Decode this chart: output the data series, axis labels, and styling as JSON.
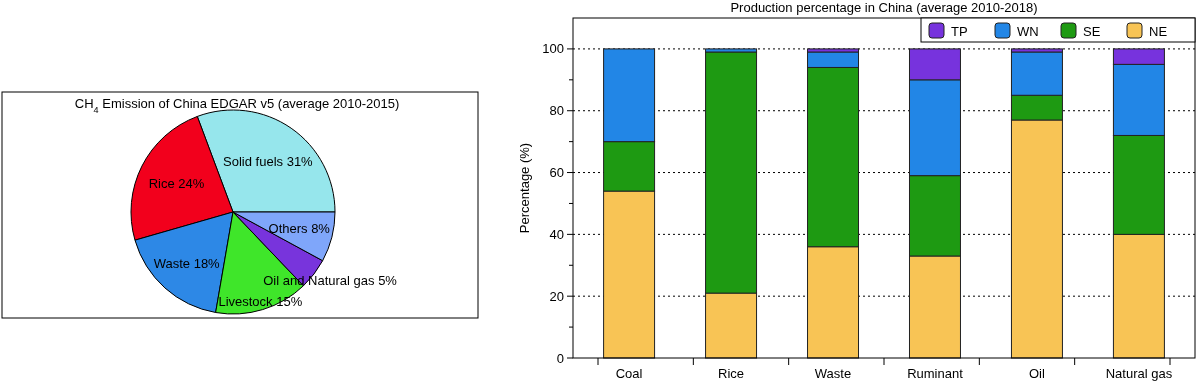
{
  "chart_data": [
    {
      "type": "pie",
      "title": "CH$_{4}$ Emission of China  EDGAR v5 (average 2010-2015)",
      "categories": [
        "Solid fuels",
        "Rice",
        "Waste",
        "Livestock",
        "Oil and Natural gas",
        "Others"
      ],
      "values": [
        31,
        24,
        18,
        15,
        5,
        8
      ],
      "value_labels": [
        "31%",
        "24%",
        "18%",
        "15%",
        "5%",
        "8%"
      ],
      "colors": [
        "#96e6ec",
        "#f2001c",
        "#2d88e6",
        "#3fe62a",
        "#7834dc",
        "#7fa6fa"
      ]
    },
    {
      "type": "bar",
      "title": "Production percentage in China (average 2010-2018)",
      "ylabel": "Percentage (%)",
      "categories": [
        "Coal",
        "Rice",
        "Waste",
        "Ruminant",
        "Oil",
        "Natural gas"
      ],
      "stacked": true,
      "series": [
        {
          "name": "NE",
          "color": "#f8c455",
          "values": [
            54,
            21,
            36,
            33,
            77,
            40
          ]
        },
        {
          "name": "SE",
          "color": "#1e9a12",
          "values": [
            16,
            78,
            58,
            26,
            8,
            32
          ]
        },
        {
          "name": "WN",
          "color": "#2286e6",
          "values": [
            30,
            1,
            5,
            31,
            14,
            23
          ]
        },
        {
          "name": "TP",
          "color": "#7733dd",
          "values": [
            0,
            0,
            1,
            10,
            1,
            5
          ]
        }
      ],
      "ylim": [
        0,
        110
      ],
      "yticks": [
        0,
        {
          "value": 10,
          "label": null
        },
        20,
        {
          "value": 30,
          "label": null
        },
        40,
        {
          "value": 50,
          "label": null
        },
        60,
        {
          "value": 70,
          "label": null
        },
        80,
        {
          "value": 90,
          "label": null
        },
        100
      ],
      "grid": "y",
      "legend": "top right"
    }
  ]
}
